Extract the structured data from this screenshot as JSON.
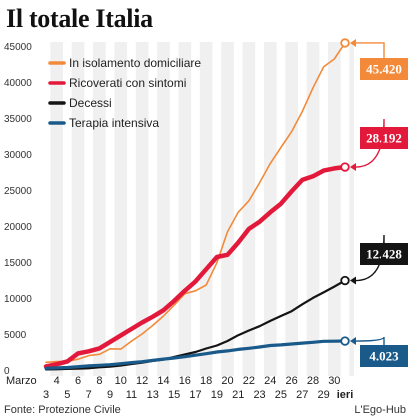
{
  "title": "Il totale Italia",
  "source": "Fonte: Protezione Civile",
  "credit": "L'Ego-Hub",
  "chart_data": {
    "type": "line",
    "title": "Il totale Italia",
    "month_label": "Marzo",
    "last_label": "ieri",
    "x": [
      "3",
      "4",
      "5",
      "6",
      "7",
      "8",
      "9",
      "10",
      "11",
      "12",
      "13",
      "14",
      "15",
      "16",
      "17",
      "18",
      "19",
      "20",
      "21",
      "22",
      "23",
      "24",
      "25",
      "26",
      "27",
      "28",
      "29",
      "30",
      "31"
    ],
    "x_tick_labels": [
      "3",
      "4",
      "5",
      "6",
      "7",
      "8",
      "9",
      "10",
      "11",
      "12",
      "13",
      "14",
      "15",
      "16",
      "17",
      "18",
      "19",
      "20",
      "21",
      "22",
      "23",
      "24",
      "25",
      "26",
      "27",
      "28",
      "29",
      "30",
      "ieri"
    ],
    "y_ticks": [
      "0",
      "5000",
      "10000",
      "15000",
      "20000",
      "25000",
      "30000",
      "35000",
      "40000",
      "45000"
    ],
    "ylim": [
      0,
      45000
    ],
    "grid": "vertical white bands",
    "legend": "top-left",
    "series": [
      {
        "name": "In isolamento domiciliare",
        "color": "#f28a3a",
        "stroke": 1.6,
        "values": [
          1070,
          1160,
          1200,
          1500,
          2000,
          2180,
          2950,
          2900,
          4000,
          5000,
          6200,
          7500,
          9000,
          10600,
          11000,
          11800,
          14900,
          19200,
          21900,
          23500,
          26000,
          28700,
          30900,
          33100,
          35900,
          39200,
          42100,
          43200,
          45420
        ]
      },
      {
        "name": "Ricoverati con sintomi",
        "color": "#e3193b",
        "stroke": 4.5,
        "values": [
          500,
          800,
          1200,
          2300,
          2600,
          3000,
          3900,
          4800,
          5700,
          6600,
          7400,
          8300,
          9600,
          11000,
          12300,
          14000,
          15700,
          16000,
          17700,
          19600,
          20600,
          21900,
          23100,
          24800,
          26400,
          26900,
          27700,
          28000,
          28192
        ]
      },
      {
        "name": "Decessi",
        "color": "#141414",
        "stroke": 2.2,
        "values": [
          80,
          100,
          150,
          200,
          230,
          370,
          460,
          630,
          830,
          1020,
          1270,
          1440,
          1810,
          2160,
          2500,
          2980,
          3400,
          4030,
          4830,
          5480,
          6080,
          6820,
          7500,
          8170,
          9130,
          10020,
          10780,
          11590,
          12428
        ]
      },
      {
        "name": "Terapia intensiva",
        "color": "#1a5a8a",
        "stroke": 3.2,
        "values": [
          230,
          290,
          350,
          460,
          570,
          650,
          730,
          880,
          1030,
          1150,
          1330,
          1520,
          1670,
          1850,
          2060,
          2260,
          2500,
          2650,
          2860,
          3010,
          3200,
          3400,
          3490,
          3610,
          3730,
          3850,
          3980,
          4000,
          4023
        ]
      }
    ],
    "end_labels": [
      {
        "text": "45.420",
        "color": "#f28a3a",
        "value": 45420
      },
      {
        "text": "28.192",
        "color": "#e3193b",
        "value": 28192
      },
      {
        "text": "12.428",
        "color": "#141414",
        "value": 12428
      },
      {
        "text": "4.023",
        "color": "#1a5a8a",
        "value": 4023
      }
    ]
  }
}
